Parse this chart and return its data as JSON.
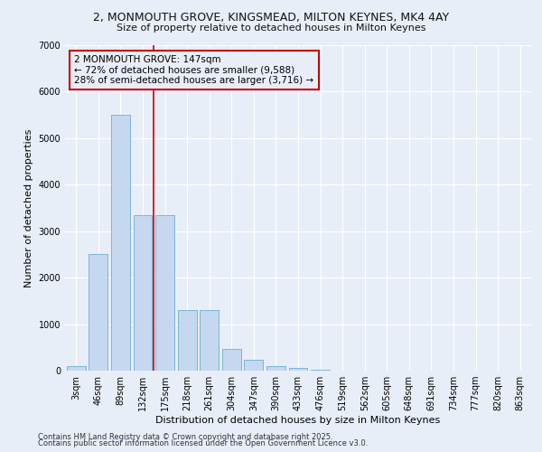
{
  "title_line1": "2, MONMOUTH GROVE, KINGSMEAD, MILTON KEYNES, MK4 4AY",
  "title_line2": "Size of property relative to detached houses in Milton Keynes",
  "xlabel": "Distribution of detached houses by size in Milton Keynes",
  "ylabel": "Number of detached properties",
  "categories": [
    "3sqm",
    "46sqm",
    "89sqm",
    "132sqm",
    "175sqm",
    "218sqm",
    "261sqm",
    "304sqm",
    "347sqm",
    "390sqm",
    "433sqm",
    "476sqm",
    "519sqm",
    "562sqm",
    "605sqm",
    "648sqm",
    "691sqm",
    "734sqm",
    "777sqm",
    "820sqm",
    "863sqm"
  ],
  "values": [
    100,
    2500,
    5500,
    3350,
    3350,
    1300,
    1300,
    470,
    230,
    100,
    50,
    10,
    5,
    3,
    2,
    1,
    0,
    0,
    0,
    0,
    0
  ],
  "bar_color": "#c5d8f0",
  "bar_edge_color": "#6baed6",
  "background_color": "#e8eef8",
  "grid_color": "#ffffff",
  "annotation_text": "2 MONMOUTH GROVE: 147sqm\n← 72% of detached houses are smaller (9,588)\n28% of semi-detached houses are larger (3,716) →",
  "annotation_box_color": "#cc0000",
  "red_line_x": 3.5,
  "ylim": [
    0,
    7000
  ],
  "yticks": [
    0,
    1000,
    2000,
    3000,
    4000,
    5000,
    6000,
    7000
  ],
  "footer_line1": "Contains HM Land Registry data © Crown copyright and database right 2025.",
  "footer_line2": "Contains public sector information licensed under the Open Government Licence v3.0.",
  "title_fontsize": 9,
  "subtitle_fontsize": 8,
  "axis_label_fontsize": 8,
  "tick_fontsize": 7,
  "annotation_fontsize": 7.5,
  "footer_fontsize": 6
}
